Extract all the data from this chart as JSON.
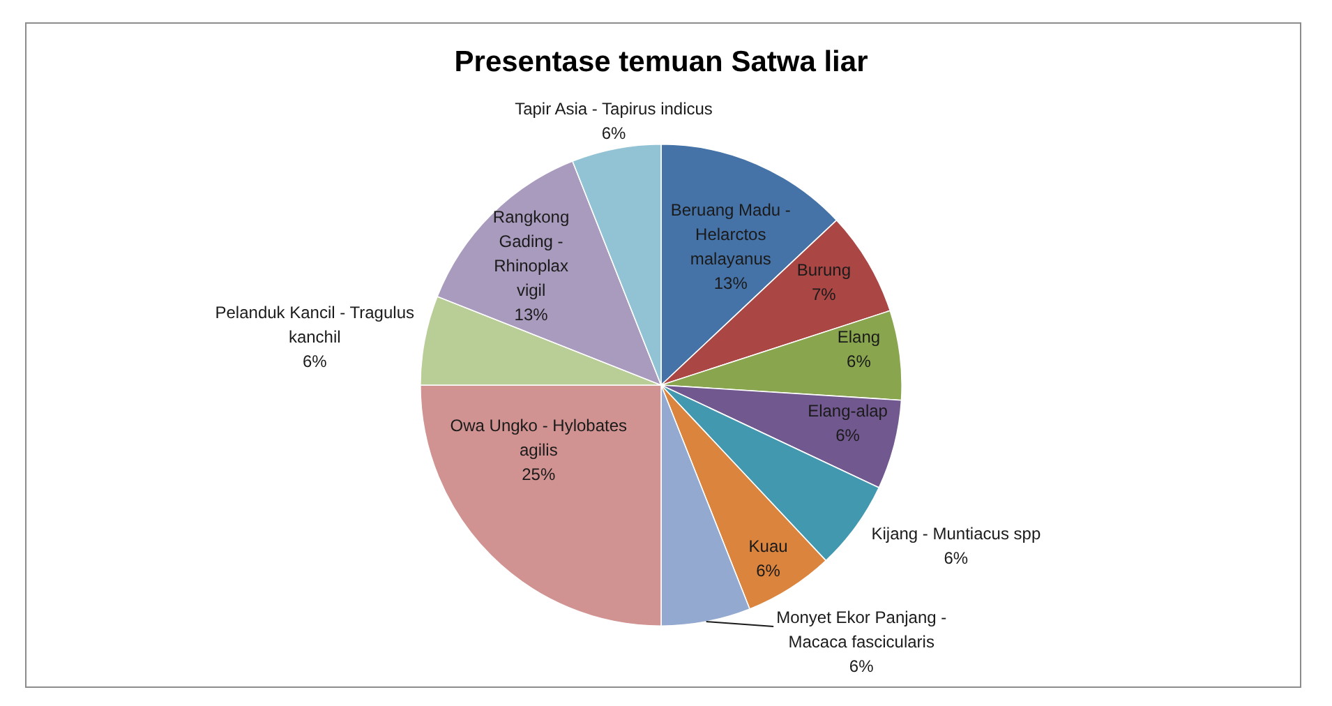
{
  "chart_data": {
    "type": "pie",
    "title": "Presentase temuan Satwa liar",
    "categories": [
      "Beruang Madu - Helarctos malayanus",
      "Burung",
      "Elang",
      "Elang-alap",
      "Kijang - Muntiacus spp",
      "Kuau",
      "Monyet Ekor Panjang - Macaca fascicularis",
      "Owa Ungko - Hylobates agilis",
      "Pelanduk Kancil - Tragulus kanchil",
      "Rangkong Gading - Rhinoplax vigil",
      "Tapir Asia - Tapirus indicus"
    ],
    "values": [
      13,
      7,
      6,
      6,
      6,
      6,
      6,
      25,
      6,
      13,
      6
    ],
    "colors": [
      "#4572a7",
      "#aa4643",
      "#89a54e",
      "#71588f",
      "#4198af",
      "#db843d",
      "#93a9cf",
      "#d19392",
      "#b9cd96",
      "#a99bbd",
      "#92c3d4"
    ],
    "value_labels": [
      "13%",
      "7%",
      "6%",
      "6%",
      "6%",
      "6%",
      "6%",
      "25%",
      "6%",
      "13%",
      "6%"
    ]
  }
}
